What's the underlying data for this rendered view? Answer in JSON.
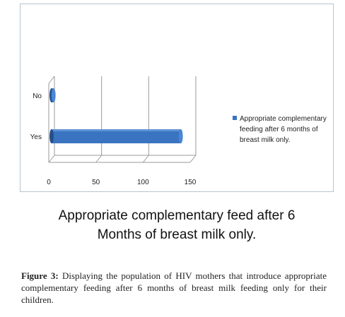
{
  "chart_data": {
    "type": "bar",
    "orientation": "horizontal",
    "categories": [
      "Yes",
      "No"
    ],
    "series": [
      {
        "name": "Appropriate complementary feeding after 6 months of breast milk only.",
        "values": [
          137,
          2
        ]
      }
    ],
    "xlim": [
      0,
      150
    ],
    "x_ticks": [
      "0",
      "50",
      "100",
      "150"
    ],
    "grid": true,
    "legend_placement": "right",
    "title": "Appropriate complementary feed after 6 Months of breast milk only.",
    "colors": {
      "bar": "#3a74c0",
      "bar_dark": "#244f8c"
    }
  },
  "title_lines": [
    "Appropriate complementary feed after 6",
    "Months of breast milk only."
  ],
  "legend_lines": [
    "Appropriate complementary",
    "feeding after 6 months of",
    "breast milk only."
  ],
  "caption": {
    "label": "Figure 3:",
    "text": " Displaying the population of HIV mothers that introduce appropriate complementary feeding after 6 months of breast milk feeding only for their children."
  }
}
